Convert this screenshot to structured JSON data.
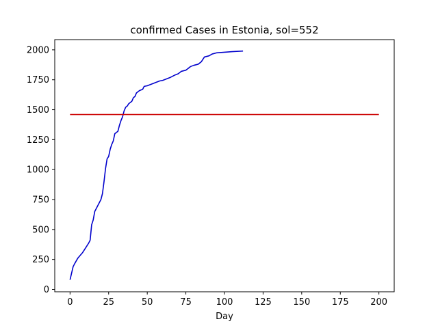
{
  "chart_data": {
    "type": "line",
    "title": "confirmed Cases in Estonia, sol=552",
    "xlabel": "Day",
    "ylabel": "",
    "xlim": [
      -9.9,
      209.9
    ],
    "ylim": [
      -20,
      2085
    ],
    "xticks": [
      0,
      25,
      50,
      75,
      100,
      125,
      150,
      175,
      200
    ],
    "yticks": [
      0,
      250,
      500,
      750,
      1000,
      1250,
      1500,
      1750,
      2000
    ],
    "grid": false,
    "series": [
      {
        "color": "#0000cc",
        "x": [
          0,
          2,
          3,
          5,
          6,
          8,
          10,
          12,
          13,
          14,
          15,
          16,
          18,
          20,
          21,
          22,
          23,
          24,
          25,
          26,
          27,
          28,
          29,
          30,
          31,
          32,
          33,
          34,
          35,
          36,
          37,
          38,
          40,
          41,
          42,
          43,
          45,
          47,
          48,
          50,
          52,
          55,
          58,
          60,
          63,
          65,
          68,
          70,
          72,
          75,
          78,
          80,
          83,
          85,
          87,
          90,
          92,
          95,
          100,
          105,
          112
        ],
        "y": [
          80,
          190,
          215,
          260,
          275,
          305,
          345,
          385,
          410,
          540,
          580,
          650,
          700,
          750,
          800,
          900,
          1010,
          1090,
          1110,
          1170,
          1210,
          1240,
          1300,
          1310,
          1320,
          1370,
          1410,
          1440,
          1490,
          1520,
          1530,
          1550,
          1570,
          1600,
          1610,
          1640,
          1660,
          1670,
          1695,
          1700,
          1710,
          1725,
          1740,
          1745,
          1760,
          1770,
          1790,
          1800,
          1820,
          1830,
          1860,
          1870,
          1880,
          1900,
          1940,
          1950,
          1965,
          1975,
          1980,
          1985,
          1990
        ]
      },
      {
        "color": "#cc0000",
        "x": [
          0,
          200
        ],
        "y": [
          1460,
          1460
        ]
      }
    ]
  }
}
